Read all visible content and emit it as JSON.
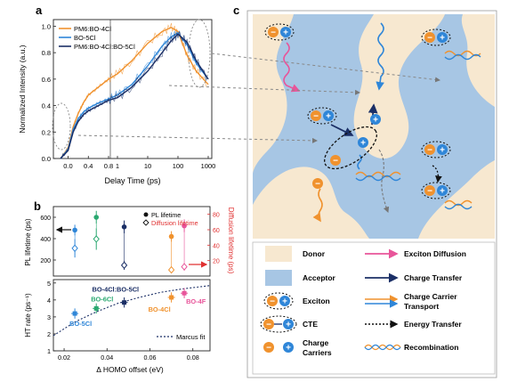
{
  "panel_labels": {
    "a": "a",
    "b": "b",
    "c": "c"
  },
  "colors": {
    "orange": "#f0922e",
    "blue": "#2f86d8",
    "navy": "#1b2f66",
    "green": "#2aa870",
    "pink": "#e8559a",
    "red": "#e03030",
    "donor": "#f7e8d0",
    "acceptor": "#a7c6e4"
  },
  "chart_data": [
    {
      "id": "a",
      "type": "line",
      "xlabel": "Delay Time (ps)",
      "ylabel": "Normalized Intensity (a.u.)",
      "x_scale": "linear-log",
      "x_ticks": [
        "0.0",
        "0.4",
        "0.8",
        "1",
        "10",
        "100",
        "1000"
      ],
      "y_ticks": [
        "0.0",
        "0.2",
        "0.4",
        "0.6",
        "0.8",
        "1.0"
      ],
      "ylim": [
        0,
        1.05
      ],
      "legend_position": "top-left",
      "series": [
        {
          "name": "PM6:BO-4Cl",
          "color": "#f0922e",
          "x": [
            -0.15,
            0.0,
            0.1,
            0.2,
            0.3,
            0.4,
            0.6,
            0.8,
            1,
            3,
            10,
            30,
            60,
            100,
            200,
            400,
            1000
          ],
          "y": [
            0.0,
            0.08,
            0.24,
            0.34,
            0.42,
            0.48,
            0.54,
            0.6,
            0.64,
            0.74,
            0.87,
            0.96,
            0.99,
            0.96,
            0.78,
            0.66,
            0.56
          ]
        },
        {
          "name": "BO-5Cl",
          "color": "#2f86d8",
          "x": [
            -0.15,
            0.0,
            0.1,
            0.2,
            0.3,
            0.4,
            0.6,
            0.8,
            1,
            3,
            10,
            30,
            60,
            100,
            200,
            400,
            1000
          ],
          "y": [
            0.0,
            0.07,
            0.22,
            0.3,
            0.35,
            0.38,
            0.42,
            0.45,
            0.48,
            0.56,
            0.7,
            0.85,
            0.92,
            0.95,
            0.86,
            0.72,
            0.6
          ]
        },
        {
          "name": "PM6:BO-4Cl:BO-5Cl",
          "color": "#1b2f66",
          "x": [
            -0.15,
            0.0,
            0.1,
            0.2,
            0.3,
            0.4,
            0.6,
            0.8,
            1,
            3,
            10,
            30,
            60,
            100,
            200,
            400,
            1000
          ],
          "y": [
            0.0,
            0.06,
            0.2,
            0.28,
            0.33,
            0.36,
            0.4,
            0.44,
            0.46,
            0.54,
            0.66,
            0.8,
            0.89,
            0.94,
            0.88,
            0.74,
            0.6
          ]
        }
      ]
    },
    {
      "id": "b-top",
      "type": "scatter",
      "ylabel": "PL lifetime (ps)",
      "ylabel_right": "Diffusion lifetime (ps)",
      "y_ticks": [
        "200",
        "400",
        "600"
      ],
      "y_ticks_right": [
        "20",
        "40",
        "60",
        "80"
      ],
      "legend": [
        {
          "label": "PL lifetime",
          "marker": "filled-circle"
        },
        {
          "label": "Diffusion lifetime",
          "marker": "open-diamond"
        }
      ],
      "points": [
        {
          "x": 0.025,
          "pl": 480,
          "pl_err": 50,
          "diff": 36,
          "diff_err": 12,
          "color": "#2f86d8"
        },
        {
          "x": 0.035,
          "pl": 600,
          "pl_err": 60,
          "diff": 48,
          "diff_err": 14,
          "color": "#2aa870"
        },
        {
          "x": 0.048,
          "pl": 510,
          "pl_err": 60,
          "diff": 14,
          "diff_err": 6,
          "color": "#1b2f66"
        },
        {
          "x": 0.07,
          "pl": 420,
          "pl_err": 50,
          "diff": 8,
          "diff_err": 4,
          "color": "#f0922e"
        },
        {
          "x": 0.076,
          "pl": 520,
          "pl_err": 60,
          "diff": 12,
          "diff_err": 5,
          "color": "#e8559a"
        }
      ]
    },
    {
      "id": "b-bottom",
      "type": "scatter",
      "xlabel": "Δ HOMO offset (eV)",
      "ylabel": "HT rate (ps⁻¹)",
      "x_ticks": [
        "0.02",
        "0.04",
        "0.06",
        "0.08"
      ],
      "xlim": [
        0.015,
        0.088
      ],
      "y_ticks": [
        "1",
        "2",
        "3",
        "4",
        "5"
      ],
      "ylim": [
        1,
        5.2
      ],
      "fit_label": "Marcus fit",
      "fit": {
        "x": [
          0.015,
          0.025,
          0.035,
          0.045,
          0.055,
          0.065,
          0.075,
          0.088
        ],
        "y": [
          1.9,
          2.7,
          3.3,
          3.8,
          4.15,
          4.45,
          4.65,
          4.85
        ]
      },
      "points": [
        {
          "x": 0.025,
          "y": 3.2,
          "err": 0.3,
          "label": "BO-5Cl",
          "color": "#2f86d8"
        },
        {
          "x": 0.035,
          "y": 3.5,
          "err": 0.3,
          "label": "BO-6Cl",
          "color": "#2aa870"
        },
        {
          "x": 0.048,
          "y": 3.85,
          "err": 0.3,
          "label": "BO-4Cl:BO-5Cl",
          "color": "#1b2f66"
        },
        {
          "x": 0.07,
          "y": 4.15,
          "err": 0.3,
          "label": "BO-4Cl",
          "color": "#f0922e"
        },
        {
          "x": 0.076,
          "y": 4.4,
          "err": 0.3,
          "label": "BO-4F",
          "color": "#e8559a"
        }
      ]
    }
  ],
  "legend_c": [
    {
      "label": "Donor"
    },
    {
      "label": "Exciton Diffusion"
    },
    {
      "label": "Acceptor"
    },
    {
      "label": "Charge Transfer"
    },
    {
      "label": "Exciton"
    },
    {
      "label": "Charge Carrier Transport"
    },
    {
      "label": "CTE"
    },
    {
      "label": "Energy Transfer"
    },
    {
      "label": "Charge Carriers"
    },
    {
      "label": "Recombination"
    }
  ],
  "symbols": {
    "minus": "−",
    "plus": "+"
  }
}
